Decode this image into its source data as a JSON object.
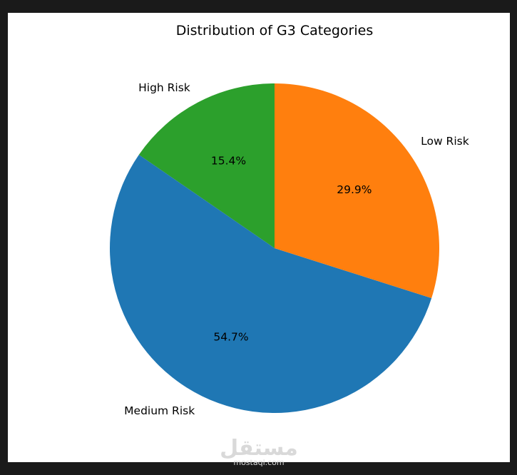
{
  "chart_data": {
    "type": "pie",
    "title": "Distribution of G3 Categories",
    "slices": [
      {
        "label": "High Risk",
        "value": 15.4,
        "pct_label": "15.4%",
        "color": "#2ca02c"
      },
      {
        "label": "Medium Risk",
        "value": 54.7,
        "pct_label": "54.7%",
        "color": "#1f77b4"
      },
      {
        "label": "Low Risk",
        "value": 29.9,
        "pct_label": "29.9%",
        "color": "#ff7f0e"
      }
    ],
    "start_angle_deg": 90,
    "direction": "counterclockwise"
  },
  "watermark": {
    "text": "مستقل",
    "subtext": "mostaql.com"
  }
}
